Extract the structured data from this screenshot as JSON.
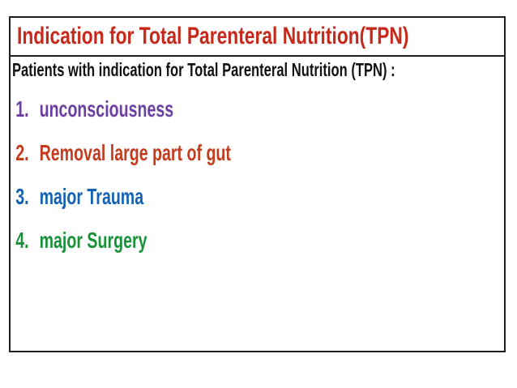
{
  "slide": {
    "title": "Indication for Total Parenteral Nutrition(TPN)",
    "subtitle": "Patients with indication for Total Parenteral Nutrition (TPN) :",
    "items": [
      {
        "number": "1.",
        "label": "unconsciousness",
        "color": "#6b3fa1"
      },
      {
        "number": "2.",
        "label": "Removal large part of gut",
        "color": "#c43c1e"
      },
      {
        "number": "3.",
        "label": "major Trauma",
        "color": "#1462b3"
      },
      {
        "number": "4.",
        "label": "major Surgery",
        "color": "#189238"
      }
    ],
    "colors": {
      "title": "#c5291b",
      "subtitle": "#121212",
      "border": "#1f1f1f",
      "background": "#ffffff"
    }
  }
}
